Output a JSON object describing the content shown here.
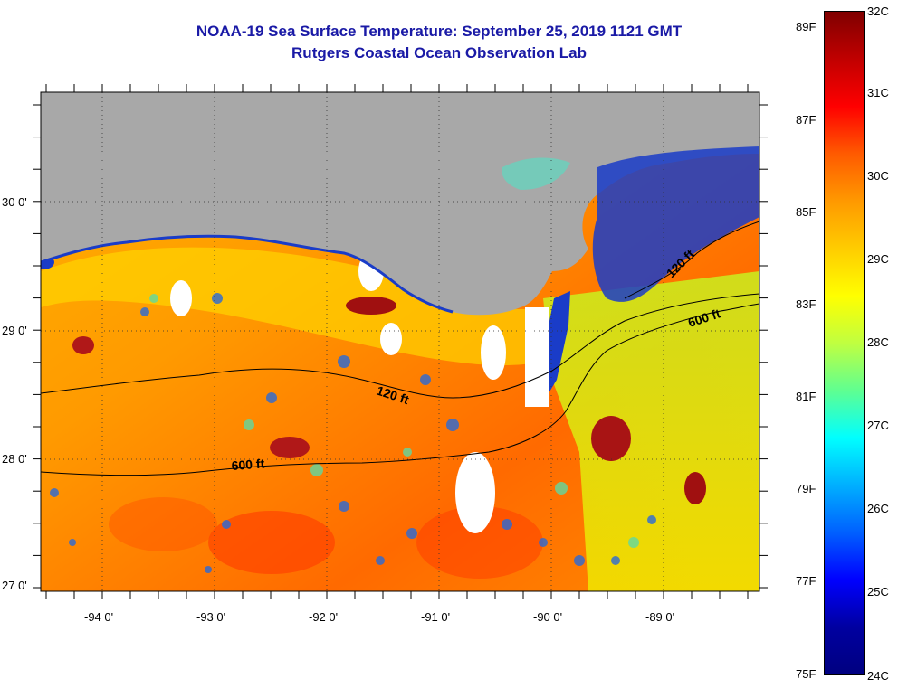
{
  "title_line1": "NOAA-19 Sea Surface Temperature:  September 25, 2019 1121 GMT",
  "title_line2": "Rutgers Coastal Ocean Observation Lab",
  "y_axis_labels": [
    "30 0'",
    "29 0'",
    "28 0'",
    "27 0'"
  ],
  "x_axis_labels": [
    "-94 0'",
    "-93 0'",
    "-92 0'",
    "-91 0'",
    "-90 0'",
    "-89 0'"
  ],
  "isobath_labels": [
    "120 ft",
    "600 ft",
    "600 ft",
    "120 ft"
  ],
  "colorbar": {
    "fahrenheit_labels": [
      "89F",
      "87F",
      "85F",
      "83F",
      "81F",
      "79F",
      "77F",
      "75F"
    ],
    "celsius_labels": [
      "32C",
      "31C",
      "30C",
      "29C",
      "28C",
      "27C",
      "26C",
      "25C",
      "24C"
    ],
    "colors": [
      "#800000",
      "#c00000",
      "#ff0000",
      "#ff5a00",
      "#ff9900",
      "#ffcc00",
      "#ffff00",
      "#c0ff40",
      "#60ff90",
      "#00ffff",
      "#00b0ff",
      "#0060ff",
      "#0000ff",
      "#0000a0",
      "#000080"
    ]
  },
  "map_colors": {
    "land": "#a8a8a8",
    "cloud": "#ffffff",
    "warm": "#ff6a00",
    "hot": "#a01010",
    "mid": "#ffb300",
    "cool": "#e6f000",
    "cold": "#1a3cc8"
  }
}
